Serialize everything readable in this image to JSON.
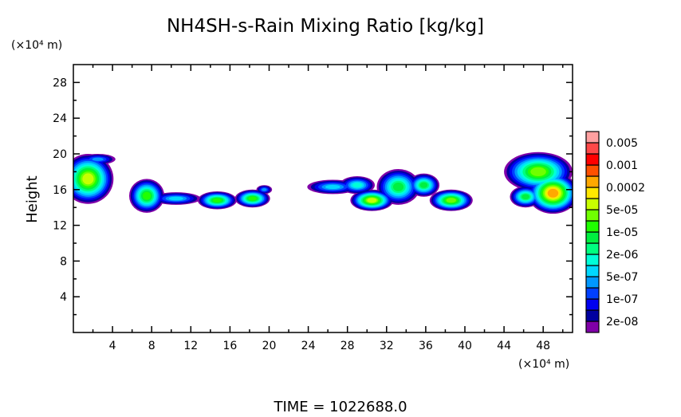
{
  "chart_data": {
    "type": "heatmap",
    "title": "NH4SH-s-Rain Mixing Ratio [kg/kg]",
    "ylabel": "Height",
    "y_unit": "(×10⁴ m)",
    "x_unit": "(×10⁴ m)",
    "xlim": [
      0,
      51
    ],
    "ylim": [
      0,
      30
    ],
    "x_ticks": [
      4,
      8,
      12,
      16,
      20,
      24,
      28,
      32,
      36,
      40,
      44,
      48
    ],
    "y_ticks": [
      4,
      8,
      12,
      16,
      20,
      24,
      28
    ],
    "colorbar": {
      "colors": [
        "#8000a8",
        "#0000a0",
        "#0000f0",
        "#0040ff",
        "#0098ff",
        "#00d8ff",
        "#00ffd8",
        "#00ff80",
        "#00f040",
        "#20ff00",
        "#70ff00",
        "#c8ff00",
        "#ffe800",
        "#ffa800",
        "#ff5000",
        "#ff0000",
        "#ff4848",
        "#ffa0a0"
      ],
      "labels": [
        "2e-08",
        "1e-07",
        "5e-07",
        "2e-06",
        "1e-05",
        "5e-05",
        "0.0002",
        "0.001",
        "0.005"
      ]
    },
    "regions": [
      {
        "x": 1.5,
        "y": 17.2,
        "rx": 2.6,
        "ry": 2.8,
        "peak": 11
      },
      {
        "x": 2.5,
        "y": 19.4,
        "rx": 1.8,
        "ry": 0.6,
        "peak": 4
      },
      {
        "x": 7.5,
        "y": 15.3,
        "rx": 1.8,
        "ry": 1.9,
        "peak": 9
      },
      {
        "x": 10.5,
        "y": 15.0,
        "rx": 2.5,
        "ry": 0.7,
        "peak": 5
      },
      {
        "x": 14.7,
        "y": 14.8,
        "rx": 2.0,
        "ry": 1.0,
        "peak": 9
      },
      {
        "x": 18.3,
        "y": 15.0,
        "rx": 1.8,
        "ry": 1.0,
        "peak": 9
      },
      {
        "x": 19.5,
        "y": 16.0,
        "rx": 0.8,
        "ry": 0.5,
        "peak": 4
      },
      {
        "x": 26.5,
        "y": 16.3,
        "rx": 2.6,
        "ry": 0.8,
        "peak": 5
      },
      {
        "x": 30.5,
        "y": 14.8,
        "rx": 2.2,
        "ry": 1.2,
        "peak": 11
      },
      {
        "x": 33.2,
        "y": 16.3,
        "rx": 2.2,
        "ry": 2.0,
        "peak": 8
      },
      {
        "x": 35.8,
        "y": 16.5,
        "rx": 1.6,
        "ry": 1.3,
        "peak": 8
      },
      {
        "x": 38.6,
        "y": 14.8,
        "rx": 2.2,
        "ry": 1.2,
        "peak": 10
      },
      {
        "x": 29.0,
        "y": 16.5,
        "rx": 1.8,
        "ry": 1.0,
        "peak": 6
      },
      {
        "x": 47.5,
        "y": 18.0,
        "rx": 3.5,
        "ry": 2.2,
        "peak": 10
      },
      {
        "x": 49.0,
        "y": 15.6,
        "rx": 2.6,
        "ry": 2.3,
        "peak": 13
      },
      {
        "x": 46.2,
        "y": 15.2,
        "rx": 1.6,
        "ry": 1.2,
        "peak": 8
      }
    ],
    "annotation": "TIME = 1022688.0"
  }
}
